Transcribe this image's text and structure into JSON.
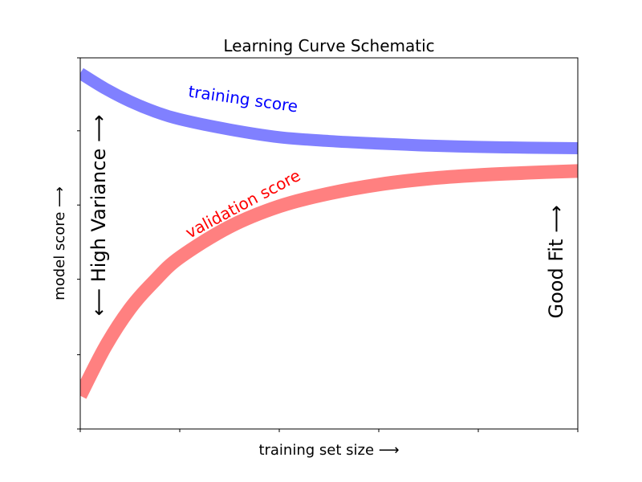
{
  "chart_data": {
    "type": "line",
    "title": "Learning Curve Schematic",
    "xlabel": "training set size ⟶",
    "ylabel": "model score ⟶",
    "xlim": [
      1,
      6
    ],
    "ylim": [
      -0.35,
      1.1
    ],
    "grid": false,
    "x_tick_labels": false,
    "y_tick_labels": false,
    "series": [
      {
        "name": "training score",
        "color": "#8080ff",
        "label_color": "#0000ff",
        "x": [
          1.0,
          1.25,
          1.5,
          1.75,
          2.0,
          2.5,
          3.0,
          3.5,
          4.0,
          4.5,
          5.0,
          5.5,
          6.0
        ],
        "y": [
          1.04,
          0.98,
          0.93,
          0.89,
          0.86,
          0.82,
          0.79,
          0.775,
          0.765,
          0.757,
          0.752,
          0.749,
          0.747
        ]
      },
      {
        "name": "validation score",
        "color": "#ff8080",
        "label_color": "#ff0000",
        "x": [
          1.0,
          1.25,
          1.5,
          1.75,
          2.0,
          2.5,
          3.0,
          3.5,
          4.0,
          4.5,
          5.0,
          5.5,
          6.0
        ],
        "y": [
          -0.22,
          -0.03,
          0.12,
          0.23,
          0.32,
          0.44,
          0.52,
          0.57,
          0.605,
          0.628,
          0.642,
          0.651,
          0.658
        ]
      }
    ],
    "annotations": [
      {
        "text": "⟵ High Variance ⟶",
        "orientation": "vertical"
      },
      {
        "text": "Good Fit ⟶",
        "orientation": "vertical"
      }
    ]
  }
}
